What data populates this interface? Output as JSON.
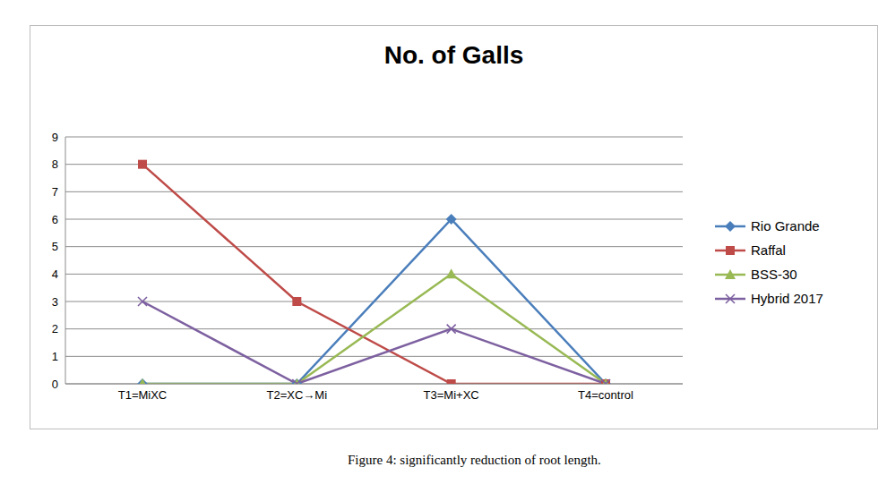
{
  "chart_data": {
    "type": "line",
    "title": "No. of Galls",
    "categories": [
      "T1=MiXC",
      "T2=XC→Mi",
      "T3=Mi+XC",
      "T4=control"
    ],
    "series": [
      {
        "name": "Rio Grande",
        "color": "#4a7ebb",
        "marker": "diamond",
        "values": [
          0,
          0,
          6,
          0
        ]
      },
      {
        "name": "Raffal",
        "color": "#be4b48",
        "marker": "square",
        "values": [
          8,
          3,
          0,
          0
        ]
      },
      {
        "name": "BSS-30",
        "color": "#98b954",
        "marker": "triangle",
        "values": [
          0,
          0,
          4,
          0
        ]
      },
      {
        "name": "Hybrid 2017",
        "color": "#7d60a0",
        "marker": "x",
        "values": [
          3,
          0,
          2,
          0
        ]
      }
    ],
    "ylim": [
      0,
      9
    ],
    "yticks": [
      0,
      1,
      2,
      3,
      4,
      5,
      6,
      7,
      8,
      9
    ],
    "grid": true,
    "legend": "right",
    "annotations": [
      "Figure 4: significantly reduction of root length."
    ]
  }
}
